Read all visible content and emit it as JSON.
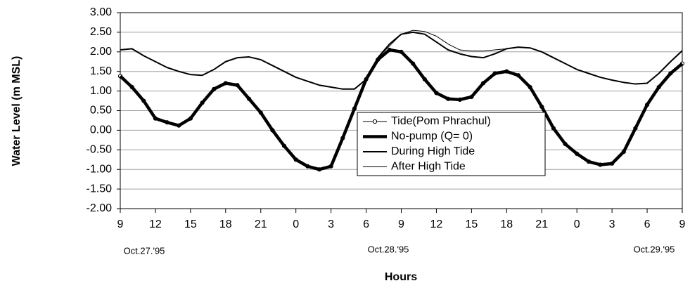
{
  "chart_data": {
    "type": "line",
    "y_label": "Water Level (m MSL)",
    "x_label": "Hours",
    "date_labels": [
      "Oct.27.'95",
      "Oct.28.'95",
      "Oct.29.'95"
    ],
    "x": [
      0,
      1,
      2,
      3,
      4,
      5,
      6,
      7,
      8,
      9,
      10,
      11,
      12,
      13,
      14,
      15,
      16,
      17,
      18,
      19,
      20,
      21,
      22,
      23,
      24,
      25,
      26,
      27,
      28,
      29,
      30,
      31,
      32,
      33,
      34,
      35,
      36,
      37,
      38,
      39,
      40,
      41,
      42,
      43,
      44,
      45,
      46,
      47,
      48
    ],
    "xlim": [
      0,
      48
    ],
    "xticks": [
      {
        "value": 0,
        "label": "9"
      },
      {
        "value": 3,
        "label": "12"
      },
      {
        "value": 6,
        "label": "15"
      },
      {
        "value": 9,
        "label": "18"
      },
      {
        "value": 12,
        "label": "21"
      },
      {
        "value": 15,
        "label": "0"
      },
      {
        "value": 18,
        "label": "3"
      },
      {
        "value": 21,
        "label": "6"
      },
      {
        "value": 24,
        "label": "9"
      },
      {
        "value": 27,
        "label": "12"
      },
      {
        "value": 30,
        "label": "15"
      },
      {
        "value": 33,
        "label": "18"
      },
      {
        "value": 36,
        "label": "21"
      },
      {
        "value": 39,
        "label": "0"
      },
      {
        "value": 42,
        "label": "3"
      },
      {
        "value": 45,
        "label": "6"
      },
      {
        "value": 48,
        "label": "9"
      }
    ],
    "ylim": [
      -2,
      3
    ],
    "yticks": [
      {
        "value": 3,
        "label": "3.00"
      },
      {
        "value": 2.5,
        "label": "2.50"
      },
      {
        "value": 2,
        "label": "2.00"
      },
      {
        "value": 1.5,
        "label": "1.50"
      },
      {
        "value": 1,
        "label": "1.00"
      },
      {
        "value": 0.5,
        "label": "0.50"
      },
      {
        "value": 0,
        "label": "0.00"
      },
      {
        "value": -0.5,
        "label": "-0.50"
      },
      {
        "value": -1,
        "label": "-1.00"
      },
      {
        "value": -1.5,
        "label": "-1.50"
      },
      {
        "value": -2,
        "label": "-2.00"
      }
    ],
    "grid": true,
    "legend": "center",
    "series": [
      {
        "name": "Tide(Pom Phrachul)",
        "color": "#000000",
        "line_width": 1,
        "marker": "circle",
        "values": [
          1.38,
          1.1,
          0.75,
          0.3,
          0.2,
          0.12,
          0.3,
          0.7,
          1.05,
          1.2,
          1.15,
          0.8,
          0.45,
          0.0,
          -0.4,
          -0.75,
          -0.92,
          -1.0,
          -0.92,
          -0.2,
          0.55,
          1.3,
          1.8,
          2.05,
          2.0,
          1.7,
          1.3,
          0.95,
          0.8,
          0.78,
          0.85,
          1.2,
          1.45,
          1.5,
          1.4,
          1.1,
          0.6,
          0.05,
          -0.35,
          -0.6,
          -0.8,
          -0.88,
          -0.85,
          -0.55,
          0.05,
          0.65,
          1.1,
          1.45,
          1.7
        ]
      },
      {
        "name": "No-pump (Q= 0)",
        "color": "#000000",
        "line_width": 4.5,
        "values": [
          1.38,
          1.1,
          0.75,
          0.3,
          0.2,
          0.12,
          0.3,
          0.7,
          1.05,
          1.2,
          1.15,
          0.8,
          0.45,
          0.0,
          -0.4,
          -0.75,
          -0.92,
          -1.0,
          -0.92,
          -0.2,
          0.55,
          1.3,
          1.8,
          2.05,
          2.0,
          1.7,
          1.3,
          0.95,
          0.8,
          0.78,
          0.85,
          1.2,
          1.45,
          1.5,
          1.4,
          1.1,
          0.6,
          0.05,
          -0.35,
          -0.6,
          -0.8,
          -0.88,
          -0.85,
          -0.55,
          0.05,
          0.65,
          1.1,
          1.45,
          1.7
        ]
      },
      {
        "name": "During High Tide",
        "color": "#000000",
        "line_width": 2,
        "values": [
          2.05,
          2.08,
          1.9,
          1.75,
          1.6,
          1.5,
          1.42,
          1.4,
          1.55,
          1.75,
          1.85,
          1.87,
          1.8,
          1.65,
          1.5,
          1.35,
          1.25,
          1.15,
          1.1,
          1.05,
          1.05,
          1.3,
          1.85,
          2.2,
          2.45,
          2.5,
          2.45,
          2.25,
          2.05,
          1.95,
          1.88,
          1.85,
          1.95,
          2.08,
          2.12,
          2.1,
          2.0,
          1.85,
          1.7,
          1.55,
          1.45,
          1.35,
          1.28,
          1.22,
          1.18,
          1.2,
          1.45,
          1.75,
          2.03
        ]
      },
      {
        "name": "After High Tide",
        "color": "#000000",
        "line_width": 1,
        "values": [
          2.05,
          2.08,
          1.9,
          1.75,
          1.6,
          1.5,
          1.42,
          1.4,
          1.55,
          1.75,
          1.85,
          1.87,
          1.8,
          1.65,
          1.5,
          1.35,
          1.25,
          1.15,
          1.1,
          1.05,
          1.05,
          1.3,
          1.85,
          2.15,
          2.45,
          2.55,
          2.52,
          2.4,
          2.2,
          2.05,
          2.02,
          2.02,
          2.05,
          2.08,
          2.12,
          2.1,
          2.0,
          1.85,
          1.7,
          1.55,
          1.45,
          1.35,
          1.28,
          1.22,
          1.18,
          1.2,
          1.45,
          1.75,
          2.03
        ]
      }
    ]
  }
}
